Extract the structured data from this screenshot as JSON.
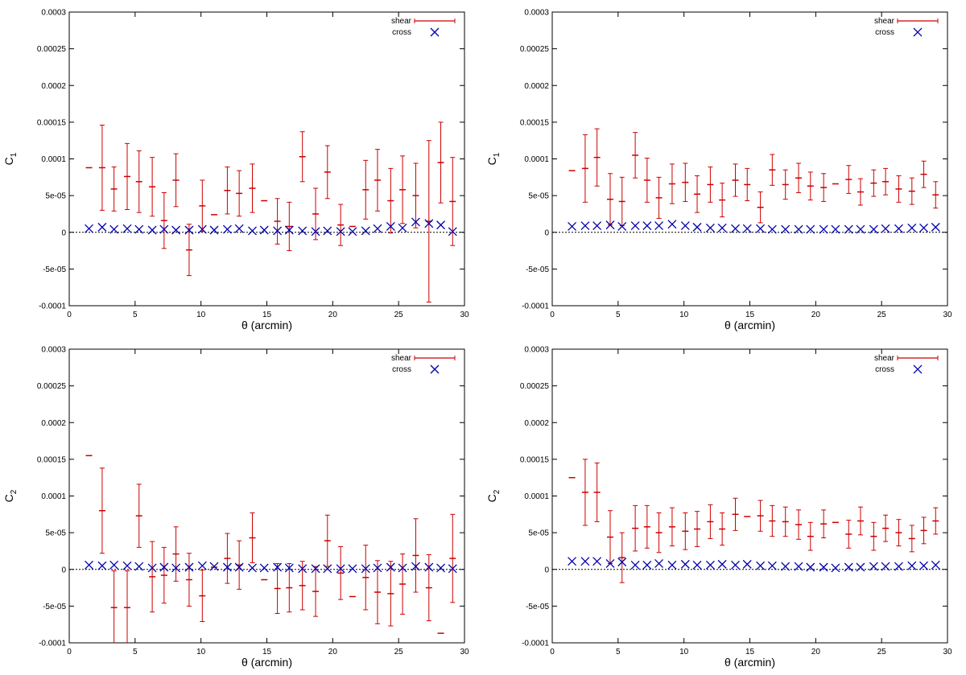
{
  "chart_data": [
    {
      "type": "scatter",
      "panel": "top-left",
      "xlabel": "θ (arcmin)",
      "ylabel": "C",
      "ylabel_sub": "1",
      "xlim": [
        0,
        30
      ],
      "ylim": [
        -0.0001,
        0.0003
      ],
      "xticks": [
        "0",
        "5",
        "10",
        "15",
        "20",
        "25",
        "30"
      ],
      "yticks": [
        "0.0003",
        "0.00025",
        "0.0002",
        "0.00015",
        "0.0001",
        "5e-05",
        "0",
        "-5e-05",
        "-0.0001"
      ],
      "legend": {
        "position": "top-right",
        "shear": "shear",
        "cross": "cross"
      },
      "zero_line": true,
      "series": [
        {
          "name": "shear",
          "marker": "errorbar",
          "color": "#cc0000",
          "x": [
            1.5,
            2.5,
            3.4,
            4.4,
            5.3,
            6.3,
            7.2,
            8.1,
            9.1,
            10.1,
            11.0,
            12.0,
            12.9,
            13.9,
            14.8,
            15.8,
            16.7,
            17.7,
            18.7,
            19.6,
            20.6,
            21.5,
            22.5,
            23.4,
            24.4,
            25.3,
            26.3,
            27.3,
            28.2,
            29.1
          ],
          "y": [
            8.8e-05,
            8.8e-05,
            5.9e-05,
            7.6e-05,
            6.9e-05,
            6.2e-05,
            1.6e-05,
            7.1e-05,
            -2.4e-05,
            3.6e-05,
            2.4e-05,
            5.7e-05,
            5.3e-05,
            6e-05,
            4.3e-05,
            1.5e-05,
            8e-06,
            0.000103,
            2.5e-05,
            8.2e-05,
            1e-05,
            8e-06,
            5.8e-05,
            7.1e-05,
            4.3e-05,
            5.8e-05,
            5e-05,
            1.5e-05,
            9.5e-05,
            4.2e-05
          ],
          "err": [
            0.0,
            5.8e-05,
            3e-05,
            4.5e-05,
            4.2e-05,
            4e-05,
            3.8e-05,
            3.6e-05,
            3.5e-05,
            3.5e-05,
            0.0,
            3.2e-05,
            3.1e-05,
            3.3e-05,
            0.0,
            3.1e-05,
            3.3e-05,
            3.4e-05,
            3.5e-05,
            3.6e-05,
            2.8e-05,
            0.0,
            4e-05,
            4.2e-05,
            4.4e-05,
            4.6e-05,
            4.4e-05,
            0.00011,
            5.5e-05,
            6e-05
          ]
        },
        {
          "name": "cross",
          "marker": "x",
          "color": "#0000aa",
          "x": [
            1.5,
            2.5,
            3.4,
            4.4,
            5.3,
            6.3,
            7.2,
            8.1,
            9.1,
            10.1,
            11.0,
            12.0,
            12.9,
            13.9,
            14.8,
            15.8,
            16.7,
            17.7,
            18.7,
            19.6,
            20.6,
            21.5,
            22.5,
            23.4,
            24.4,
            25.3,
            26.3,
            27.3,
            28.2,
            29.1
          ],
          "y": [
            5e-06,
            7e-06,
            4e-06,
            5e-06,
            4e-06,
            3e-06,
            4e-06,
            3e-06,
            3e-06,
            4e-06,
            3e-06,
            4e-06,
            5e-06,
            2e-06,
            3e-06,
            2e-06,
            3e-06,
            2e-06,
            1e-06,
            2e-06,
            1e-06,
            1e-06,
            2e-06,
            5e-06,
            8e-06,
            6e-06,
            1.4e-05,
            1.2e-05,
            1e-05,
            1e-06
          ]
        }
      ]
    },
    {
      "type": "scatter",
      "panel": "top-right",
      "xlabel": "θ (arcmin)",
      "ylabel": "C",
      "ylabel_sub": "1",
      "xlim": [
        0,
        30
      ],
      "ylim": [
        -0.0001,
        0.0003
      ],
      "xticks": [
        "0",
        "5",
        "10",
        "15",
        "20",
        "25",
        "30"
      ],
      "yticks": [
        "0.0003",
        "0.00025",
        "0.0002",
        "0.00015",
        "0.0001",
        "5e-05",
        "0",
        "-5e-05",
        "-0.0001"
      ],
      "legend": {
        "position": "top-right",
        "shear": "shear",
        "cross": "cross"
      },
      "zero_line": true,
      "series": [
        {
          "name": "shear",
          "marker": "errorbar",
          "color": "#cc0000",
          "x": [
            1.5,
            2.5,
            3.4,
            4.4,
            5.3,
            6.3,
            7.2,
            8.1,
            9.1,
            10.1,
            11.0,
            12.0,
            12.9,
            13.9,
            14.8,
            15.8,
            16.7,
            17.7,
            18.7,
            19.6,
            20.6,
            21.5,
            22.5,
            23.4,
            24.4,
            25.3,
            26.3,
            27.3,
            28.2,
            29.1
          ],
          "y": [
            8.4e-05,
            8.7e-05,
            0.000102,
            4.5e-05,
            4.2e-05,
            0.000105,
            7.1e-05,
            4.7e-05,
            6.6e-05,
            6.8e-05,
            5.2e-05,
            6.5e-05,
            4.4e-05,
            7.1e-05,
            6.5e-05,
            3.4e-05,
            8.5e-05,
            6.5e-05,
            7.4e-05,
            6.3e-05,
            6.1e-05,
            6.6e-05,
            7.2e-05,
            5.5e-05,
            6.7e-05,
            6.9e-05,
            5.9e-05,
            5.6e-05,
            7.9e-05,
            5.1e-05
          ],
          "err": [
            0.0,
            4.6e-05,
            3.9e-05,
            3.5e-05,
            3.3e-05,
            3.1e-05,
            3e-05,
            2.8e-05,
            2.7e-05,
            2.6e-05,
            2.5e-05,
            2.4e-05,
            2.3e-05,
            2.2e-05,
            2.2e-05,
            2.1e-05,
            2.1e-05,
            2e-05,
            2e-05,
            1.9e-05,
            1.9e-05,
            0.0,
            1.9e-05,
            1.8e-05,
            1.8e-05,
            1.8e-05,
            1.8e-05,
            1.8e-05,
            1.8e-05,
            1.8e-05
          ]
        },
        {
          "name": "cross",
          "marker": "x",
          "color": "#0000aa",
          "x": [
            1.5,
            2.5,
            3.4,
            4.4,
            5.3,
            6.3,
            7.2,
            8.1,
            9.1,
            10.1,
            11.0,
            12.0,
            12.9,
            13.9,
            14.8,
            15.8,
            16.7,
            17.7,
            18.7,
            19.6,
            20.6,
            21.5,
            22.5,
            23.4,
            24.4,
            25.3,
            26.3,
            27.3,
            28.2,
            29.1
          ],
          "y": [
            8e-06,
            9e-06,
            9e-06,
            1e-05,
            8e-06,
            9e-06,
            9e-06,
            9e-06,
            1.1e-05,
            9e-06,
            7e-06,
            6e-06,
            6e-06,
            5e-06,
            5e-06,
            5e-06,
            4e-06,
            4e-06,
            4e-06,
            4e-06,
            4e-06,
            4e-06,
            4e-06,
            4e-06,
            4e-06,
            5e-06,
            5e-06,
            6e-06,
            6e-06,
            7e-06
          ]
        }
      ]
    },
    {
      "type": "scatter",
      "panel": "bottom-left",
      "xlabel": "θ (arcmin)",
      "ylabel": "C",
      "ylabel_sub": "2",
      "xlim": [
        0,
        30
      ],
      "ylim": [
        -0.0001,
        0.0003
      ],
      "xticks": [
        "0",
        "5",
        "10",
        "15",
        "20",
        "25",
        "30"
      ],
      "yticks": [
        "0.0003",
        "0.00025",
        "0.0002",
        "0.00015",
        "0.0001",
        "5e-05",
        "0",
        "-5e-05",
        "-0.0001"
      ],
      "legend": {
        "position": "top-right",
        "shear": "shear",
        "cross": "cross"
      },
      "zero_line": true,
      "series": [
        {
          "name": "shear",
          "marker": "errorbar",
          "color": "#cc0000",
          "x": [
            1.5,
            2.5,
            3.4,
            4.4,
            5.3,
            6.3,
            7.2,
            8.1,
            9.1,
            10.1,
            11.0,
            12.0,
            12.9,
            13.9,
            14.8,
            15.8,
            16.7,
            17.7,
            18.7,
            19.6,
            20.6,
            21.5,
            22.5,
            23.4,
            24.4,
            25.3,
            26.3,
            27.3,
            28.2,
            29.1
          ],
          "y": [
            0.000155,
            8e-05,
            -5.2e-05,
            -5.2e-05,
            7.3e-05,
            -1e-05,
            -8e-06,
            2.1e-05,
            -1.4e-05,
            -3.6e-05,
            3e-06,
            1.5e-05,
            6e-06,
            4.3e-05,
            -1.4e-05,
            -2.6e-05,
            -2.5e-05,
            -2.2e-05,
            -3e-05,
            3.9e-05,
            -5e-06,
            -3.7e-05,
            -1.1e-05,
            -3.1e-05,
            -3.3e-05,
            -2e-05,
            1.9e-05,
            -2.5e-05,
            -8.7e-05,
            1.5e-05
          ],
          "err": [
            0.0,
            5.8e-05,
            5e-05,
            5e-05,
            4.3e-05,
            4.8e-05,
            3.8e-05,
            3.7e-05,
            3.6e-05,
            3.5e-05,
            0.0,
            3.4e-05,
            3.3e-05,
            3.4e-05,
            0.0,
            3.4e-05,
            3.3e-05,
            3.3e-05,
            3.4e-05,
            3.5e-05,
            3.6e-05,
            0.0,
            4.4e-05,
            4.3e-05,
            4.4e-05,
            4.1e-05,
            5e-05,
            4.5e-05,
            0.0,
            6e-05
          ]
        },
        {
          "name": "cross",
          "marker": "x",
          "color": "#0000aa",
          "x": [
            1.5,
            2.5,
            3.4,
            4.4,
            5.3,
            6.3,
            7.2,
            8.1,
            9.1,
            10.1,
            11.0,
            12.0,
            12.9,
            13.9,
            14.8,
            15.8,
            16.7,
            17.7,
            18.7,
            19.6,
            20.6,
            21.5,
            22.5,
            23.4,
            24.4,
            25.3,
            26.3,
            27.3,
            28.2,
            29.1
          ],
          "y": [
            6e-06,
            5e-06,
            6e-06,
            5e-06,
            4e-06,
            2e-06,
            3e-06,
            2e-06,
            3e-06,
            5e-06,
            4e-06,
            3e-06,
            3e-06,
            2e-06,
            2e-06,
            3e-06,
            2e-06,
            1e-06,
            1e-06,
            1e-06,
            1e-06,
            1e-06,
            1e-06,
            2e-06,
            3e-06,
            2e-06,
            4e-06,
            3e-06,
            2e-06,
            1e-06
          ]
        }
      ]
    },
    {
      "type": "scatter",
      "panel": "bottom-right",
      "xlabel": "θ (arcmin)",
      "ylabel": "C",
      "ylabel_sub": "2",
      "xlim": [
        0,
        30
      ],
      "ylim": [
        -0.0001,
        0.0003
      ],
      "xticks": [
        "0",
        "5",
        "10",
        "15",
        "20",
        "25",
        "30"
      ],
      "yticks": [
        "0.0003",
        "0.00025",
        "0.0002",
        "0.00015",
        "0.0001",
        "5e-05",
        "0",
        "-5e-05",
        "-0.0001"
      ],
      "legend": {
        "position": "top-right",
        "shear": "shear",
        "cross": "cross"
      },
      "zero_line": true,
      "series": [
        {
          "name": "shear",
          "marker": "errorbar",
          "color": "#cc0000",
          "x": [
            1.5,
            2.5,
            3.4,
            4.4,
            5.3,
            6.3,
            7.2,
            8.1,
            9.1,
            10.1,
            11.0,
            12.0,
            12.9,
            13.9,
            14.8,
            15.8,
            16.7,
            17.7,
            18.7,
            19.6,
            20.6,
            21.5,
            22.5,
            23.4,
            24.4,
            25.3,
            26.3,
            27.3,
            28.2,
            29.1
          ],
          "y": [
            0.000125,
            0.000105,
            0.000105,
            4.4e-05,
            1.6e-05,
            5.6e-05,
            5.8e-05,
            5e-05,
            5.8e-05,
            5.2e-05,
            5.5e-05,
            6.5e-05,
            5.5e-05,
            7.5e-05,
            7.2e-05,
            7.3e-05,
            6.6e-05,
            6.5e-05,
            6.1e-05,
            4.5e-05,
            6.2e-05,
            6.4e-05,
            4.8e-05,
            6.6e-05,
            4.5e-05,
            5.6e-05,
            5e-05,
            4.2e-05,
            5.3e-05,
            6.6e-05
          ],
          "err": [
            0.0,
            4.5e-05,
            4e-05,
            3.6e-05,
            3.4e-05,
            3.1e-05,
            2.9e-05,
            2.7e-05,
            2.6e-05,
            2.5e-05,
            2.4e-05,
            2.3e-05,
            2.2e-05,
            2.2e-05,
            0.0,
            2.1e-05,
            2.1e-05,
            2e-05,
            2e-05,
            1.9e-05,
            1.9e-05,
            0.0,
            1.9e-05,
            1.9e-05,
            1.9e-05,
            1.8e-05,
            1.8e-05,
            1.8e-05,
            1.8e-05,
            1.8e-05
          ]
        },
        {
          "name": "cross",
          "marker": "x",
          "color": "#0000aa",
          "x": [
            1.5,
            2.5,
            3.4,
            4.4,
            5.3,
            6.3,
            7.2,
            8.1,
            9.1,
            10.1,
            11.0,
            12.0,
            12.9,
            13.9,
            14.8,
            15.8,
            16.7,
            17.7,
            18.7,
            19.6,
            20.6,
            21.5,
            22.5,
            23.4,
            24.4,
            25.3,
            26.3,
            27.3,
            28.2,
            29.1
          ],
          "y": [
            1.1e-05,
            1.1e-05,
            1.1e-05,
            8e-06,
            1e-05,
            6e-06,
            6e-06,
            8e-06,
            6e-06,
            7e-06,
            6e-06,
            6e-06,
            7e-06,
            6e-06,
            7e-06,
            5e-06,
            5e-06,
            4e-06,
            4e-06,
            3e-06,
            3e-06,
            2e-06,
            3e-06,
            3e-06,
            4e-06,
            4e-06,
            4e-06,
            5e-06,
            5e-06,
            6e-06
          ]
        }
      ]
    }
  ]
}
